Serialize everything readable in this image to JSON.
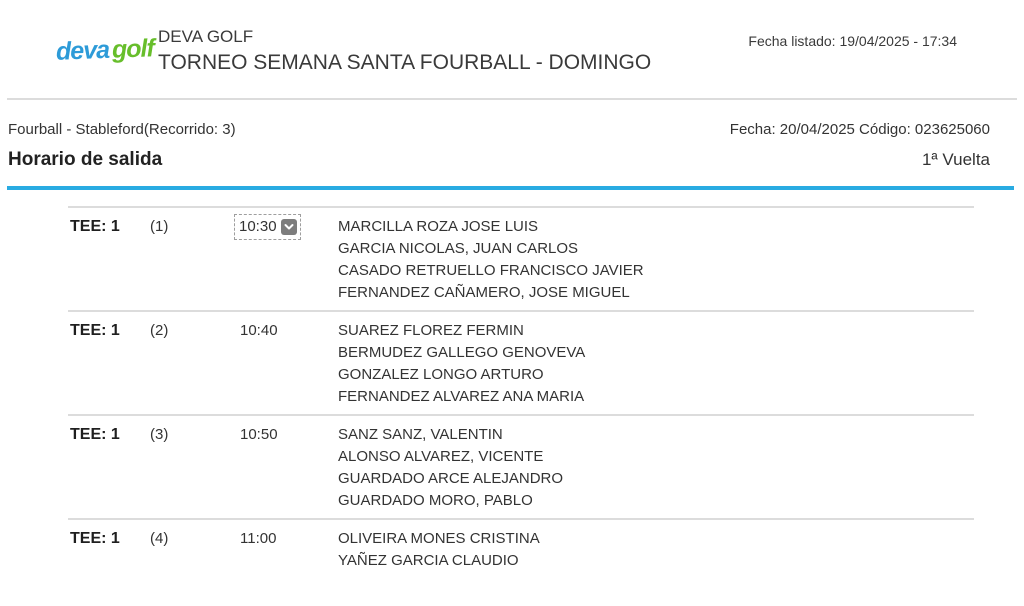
{
  "header": {
    "logo": {
      "deva": "deva",
      "golf": "golf"
    },
    "club_name": "DEVA GOLF",
    "tournament_title": "TORNEO SEMANA SANTA FOURBALL - DOMINGO",
    "listed_date": "Fecha listado: 19/04/2025 - 17:34"
  },
  "info": {
    "format_line": "Fourball - Stableford(Recorrido: 3)",
    "date_code_line": "Fecha: 20/04/2025 Código: 023625060",
    "section_title": "Horario de salida",
    "round_label": "1ª Vuelta"
  },
  "tee_sheet": {
    "groups": [
      {
        "tee": "TEE: 1",
        "group_number": "(1)",
        "time": "10:30",
        "time_editable": true,
        "players": [
          "MARCILLA ROZA JOSE LUIS",
          "GARCIA NICOLAS, JUAN CARLOS",
          "CASADO RETRUELLO FRANCISCO JAVIER",
          "FERNANDEZ CAÑAMERO, JOSE MIGUEL"
        ]
      },
      {
        "tee": "TEE: 1",
        "group_number": "(2)",
        "time": "10:40",
        "time_editable": false,
        "players": [
          "SUAREZ FLOREZ FERMIN",
          "BERMUDEZ GALLEGO GENOVEVA",
          "GONZALEZ LONGO ARTURO",
          "FERNANDEZ ALVAREZ ANA MARIA"
        ]
      },
      {
        "tee": "TEE: 1",
        "group_number": "(3)",
        "time": "10:50",
        "time_editable": false,
        "players": [
          "SANZ SANZ, VALENTIN",
          "ALONSO ALVAREZ, VICENTE",
          "GUARDADO ARCE ALEJANDRO",
          "GUARDADO MORO, PABLO"
        ]
      },
      {
        "tee": "TEE: 1",
        "group_number": "(4)",
        "time": "11:00",
        "time_editable": false,
        "players": [
          "OLIVEIRA MONES CRISTINA",
          "YAÑEZ GARCIA CLAUDIO"
        ]
      }
    ]
  },
  "colors": {
    "accent_blue": "#29ABE2",
    "logo_blue": "#2D9BD8",
    "logo_green": "#67BE2B",
    "text": "#333333",
    "rule_gray": "#DCDCDC"
  }
}
